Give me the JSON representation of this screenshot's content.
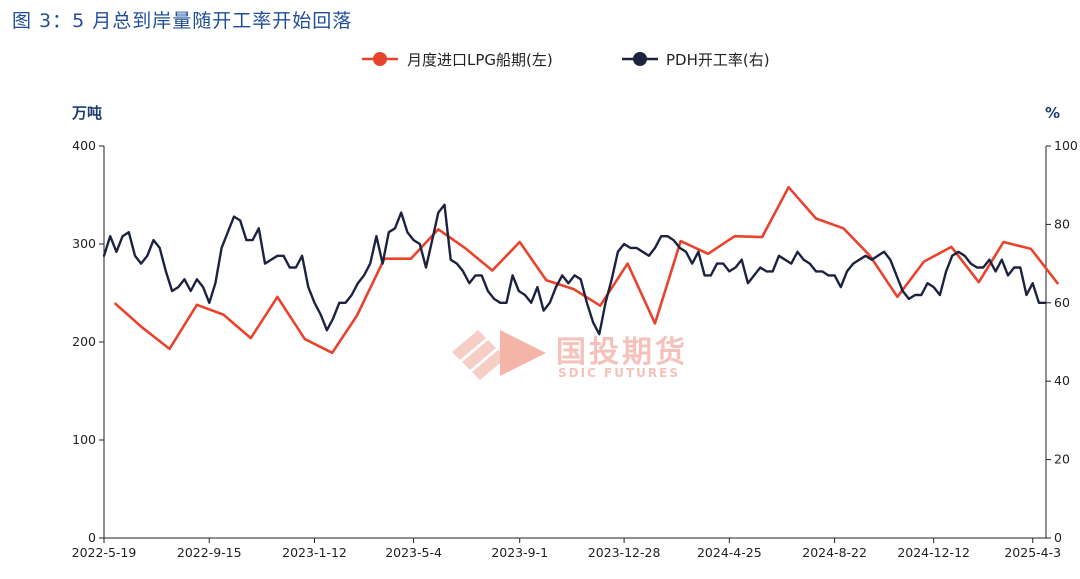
{
  "figure_title": "图 3：5 月总到岸量随开工率开始回落",
  "watermark": {
    "cn": "国投期货",
    "en": "SDIC FUTURES"
  },
  "colors": {
    "lpg": "#e8432d",
    "pdh": "#1c2340",
    "title": "#1f4e99",
    "axis": "#222222"
  },
  "chart_data": {
    "type": "line",
    "title": "",
    "left_unit": "万吨",
    "right_unit": "%",
    "ylim_left": [
      0,
      400
    ],
    "ylim_right": [
      0,
      100
    ],
    "yticks_left": [
      "0",
      "100",
      "200",
      "300",
      "400"
    ],
    "yticks_right": [
      "0",
      "20",
      "40",
      "60",
      "80",
      "100"
    ],
    "xlim": [
      "2022-05-19",
      "2025-04-18"
    ],
    "xticks": [
      "2022-5-19",
      "2022-9-15",
      "2023-1-12",
      "2023-5-4",
      "2023-9-1",
      "2023-12-28",
      "2024-4-25",
      "2024-8-22",
      "2024-12-12",
      "2025-4-3"
    ],
    "grid": false,
    "legend": "top-center",
    "series": [
      {
        "name": "月度进口LPG船期(左)",
        "axis": "left",
        "marker": "circle",
        "color": "#e8432d",
        "points": [
          [
            "2022-06-01",
            239
          ],
          [
            "2022-07-01",
            215
          ],
          [
            "2022-08-01",
            193
          ],
          [
            "2022-09-01",
            238
          ],
          [
            "2022-10-01",
            228
          ],
          [
            "2022-11-01",
            204
          ],
          [
            "2022-12-01",
            246
          ],
          [
            "2023-01-01",
            203
          ],
          [
            "2023-02-01",
            189
          ],
          [
            "2023-03-01",
            227
          ],
          [
            "2023-04-01",
            285
          ],
          [
            "2023-05-01",
            285
          ],
          [
            "2023-06-01",
            315
          ],
          [
            "2023-07-01",
            296
          ],
          [
            "2023-08-01",
            273
          ],
          [
            "2023-09-01",
            302
          ],
          [
            "2023-10-01",
            263
          ],
          [
            "2023-11-01",
            254
          ],
          [
            "2023-12-01",
            237
          ],
          [
            "2024-01-01",
            280
          ],
          [
            "2024-02-01",
            219
          ],
          [
            "2024-03-01",
            303
          ],
          [
            "2024-04-01",
            290
          ],
          [
            "2024-05-01",
            308
          ],
          [
            "2024-06-01",
            307
          ],
          [
            "2024-07-01",
            358
          ],
          [
            "2024-08-01",
            326
          ],
          [
            "2024-09-01",
            316
          ],
          [
            "2024-10-01",
            288
          ],
          [
            "2024-11-01",
            246
          ],
          [
            "2024-12-01",
            282
          ],
          [
            "2025-01-01",
            297
          ],
          [
            "2025-02-01",
            261
          ],
          [
            "2025-03-01",
            302
          ],
          [
            "2025-04-01",
            295
          ],
          [
            "2025-05-01",
            260
          ]
        ]
      },
      {
        "name": "PDH开工率(右)",
        "axis": "right",
        "marker": "circle",
        "color": "#1c2340",
        "points": [
          [
            "2022-05-19",
            72
          ],
          [
            "2022-05-26",
            77
          ],
          [
            "2022-06-02",
            73
          ],
          [
            "2022-06-09",
            77
          ],
          [
            "2022-06-16",
            78
          ],
          [
            "2022-06-23",
            72
          ],
          [
            "2022-06-30",
            70
          ],
          [
            "2022-07-07",
            72
          ],
          [
            "2022-07-14",
            76
          ],
          [
            "2022-07-21",
            74
          ],
          [
            "2022-07-28",
            68
          ],
          [
            "2022-08-04",
            63
          ],
          [
            "2022-08-11",
            64
          ],
          [
            "2022-08-18",
            66
          ],
          [
            "2022-08-25",
            63
          ],
          [
            "2022-09-01",
            66
          ],
          [
            "2022-09-08",
            64
          ],
          [
            "2022-09-15",
            60
          ],
          [
            "2022-09-22",
            65
          ],
          [
            "2022-09-29",
            74
          ],
          [
            "2022-10-06",
            78
          ],
          [
            "2022-10-13",
            82
          ],
          [
            "2022-10-20",
            81
          ],
          [
            "2022-10-27",
            76
          ],
          [
            "2022-11-03",
            76
          ],
          [
            "2022-11-10",
            79
          ],
          [
            "2022-11-17",
            70
          ],
          [
            "2022-11-24",
            71
          ],
          [
            "2022-12-01",
            72
          ],
          [
            "2022-12-08",
            72
          ],
          [
            "2022-12-15",
            69
          ],
          [
            "2022-12-22",
            69
          ],
          [
            "2022-12-29",
            72
          ],
          [
            "2023-01-05",
            64
          ],
          [
            "2023-01-12",
            60
          ],
          [
            "2023-01-19",
            57
          ],
          [
            "2023-01-26",
            53
          ],
          [
            "2023-02-02",
            56
          ],
          [
            "2023-02-09",
            60
          ],
          [
            "2023-02-16",
            60
          ],
          [
            "2023-02-23",
            62
          ],
          [
            "2023-03-02",
            65
          ],
          [
            "2023-03-09",
            67
          ],
          [
            "2023-03-16",
            70
          ],
          [
            "2023-03-23",
            77
          ],
          [
            "2023-03-30",
            70
          ],
          [
            "2023-04-06",
            78
          ],
          [
            "2023-04-13",
            79
          ],
          [
            "2023-04-20",
            83
          ],
          [
            "2023-04-27",
            78
          ],
          [
            "2023-05-04",
            76
          ],
          [
            "2023-05-11",
            75
          ],
          [
            "2023-05-18",
            69
          ],
          [
            "2023-05-25",
            76
          ],
          [
            "2023-06-01",
            83
          ],
          [
            "2023-06-08",
            85
          ],
          [
            "2023-06-15",
            71
          ],
          [
            "2023-06-22",
            70
          ],
          [
            "2023-06-29",
            68
          ],
          [
            "2023-07-06",
            65
          ],
          [
            "2023-07-13",
            67
          ],
          [
            "2023-07-20",
            67
          ],
          [
            "2023-07-27",
            63
          ],
          [
            "2023-08-03",
            61
          ],
          [
            "2023-08-10",
            60
          ],
          [
            "2023-08-17",
            60
          ],
          [
            "2023-08-24",
            67
          ],
          [
            "2023-08-31",
            63
          ],
          [
            "2023-09-07",
            62
          ],
          [
            "2023-09-14",
            60
          ],
          [
            "2023-09-21",
            64
          ],
          [
            "2023-09-28",
            58
          ],
          [
            "2023-10-05",
            60
          ],
          [
            "2023-10-12",
            64
          ],
          [
            "2023-10-19",
            67
          ],
          [
            "2023-10-26",
            65
          ],
          [
            "2023-11-02",
            67
          ],
          [
            "2023-11-09",
            66
          ],
          [
            "2023-11-16",
            60
          ],
          [
            "2023-11-23",
            55
          ],
          [
            "2023-11-30",
            52
          ],
          [
            "2023-12-07",
            60
          ],
          [
            "2023-12-14",
            66
          ],
          [
            "2023-12-21",
            73
          ],
          [
            "2023-12-28",
            75
          ],
          [
            "2024-01-04",
            74
          ],
          [
            "2024-01-11",
            74
          ],
          [
            "2024-01-18",
            73
          ],
          [
            "2024-01-25",
            72
          ],
          [
            "2024-02-01",
            74
          ],
          [
            "2024-02-08",
            77
          ],
          [
            "2024-02-15",
            77
          ],
          [
            "2024-02-22",
            76
          ],
          [
            "2024-02-29",
            74
          ],
          [
            "2024-03-07",
            73
          ],
          [
            "2024-03-14",
            70
          ],
          [
            "2024-03-21",
            73
          ],
          [
            "2024-03-28",
            67
          ],
          [
            "2024-04-04",
            67
          ],
          [
            "2024-04-11",
            70
          ],
          [
            "2024-04-18",
            70
          ],
          [
            "2024-04-25",
            68
          ],
          [
            "2024-05-02",
            69
          ],
          [
            "2024-05-09",
            71
          ],
          [
            "2024-05-16",
            65
          ],
          [
            "2024-05-23",
            67
          ],
          [
            "2024-05-30",
            69
          ],
          [
            "2024-06-06",
            68
          ],
          [
            "2024-06-13",
            68
          ],
          [
            "2024-06-20",
            72
          ],
          [
            "2024-06-27",
            71
          ],
          [
            "2024-07-04",
            70
          ],
          [
            "2024-07-11",
            73
          ],
          [
            "2024-07-18",
            71
          ],
          [
            "2024-07-25",
            70
          ],
          [
            "2024-08-01",
            68
          ],
          [
            "2024-08-08",
            68
          ],
          [
            "2024-08-15",
            67
          ],
          [
            "2024-08-22",
            67
          ],
          [
            "2024-08-29",
            64
          ],
          [
            "2024-09-05",
            68
          ],
          [
            "2024-09-12",
            70
          ],
          [
            "2024-09-19",
            71
          ],
          [
            "2024-09-26",
            72
          ],
          [
            "2024-10-03",
            71
          ],
          [
            "2024-10-10",
            72
          ],
          [
            "2024-10-17",
            73
          ],
          [
            "2024-10-24",
            71
          ],
          [
            "2024-10-31",
            67
          ],
          [
            "2024-11-07",
            63
          ],
          [
            "2024-11-14",
            61
          ],
          [
            "2024-11-21",
            62
          ],
          [
            "2024-11-28",
            62
          ],
          [
            "2024-12-05",
            65
          ],
          [
            "2024-12-12",
            64
          ],
          [
            "2024-12-19",
            62
          ],
          [
            "2024-12-26",
            68
          ],
          [
            "2025-01-02",
            72
          ],
          [
            "2025-01-09",
            73
          ],
          [
            "2025-01-16",
            72
          ],
          [
            "2025-01-23",
            70
          ],
          [
            "2025-01-30",
            69
          ],
          [
            "2025-02-06",
            69
          ],
          [
            "2025-02-13",
            71
          ],
          [
            "2025-02-20",
            68
          ],
          [
            "2025-02-27",
            71
          ],
          [
            "2025-03-06",
            67
          ],
          [
            "2025-03-13",
            69
          ],
          [
            "2025-03-20",
            69
          ],
          [
            "2025-03-27",
            62
          ],
          [
            "2025-04-03",
            65
          ],
          [
            "2025-04-10",
            60
          ],
          [
            "2025-04-17",
            60
          ]
        ]
      }
    ]
  }
}
